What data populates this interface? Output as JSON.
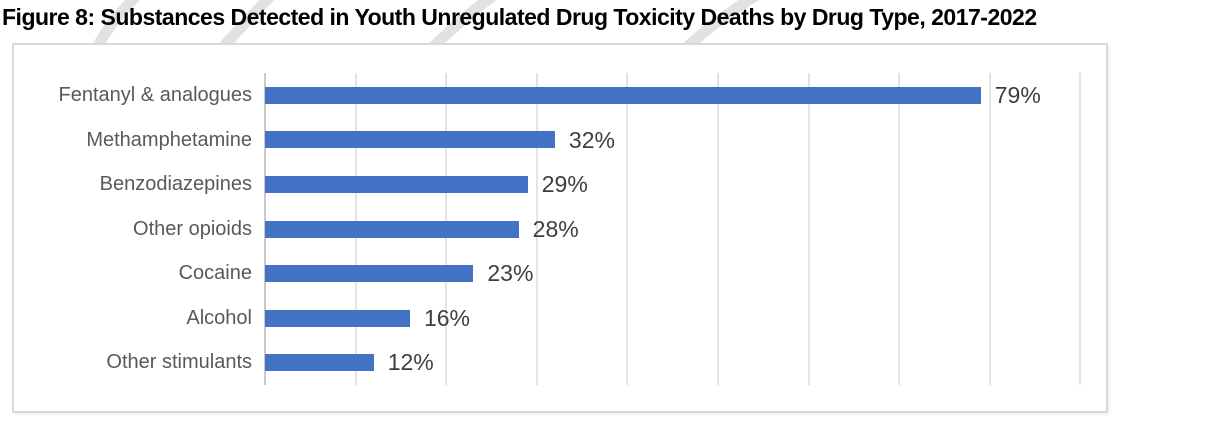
{
  "title": "Figure 8: Substances Detected in Youth Unregulated Drug Toxicity Deaths by Drug Type, 2017-2022",
  "colors": {
    "bar": "#4472C4",
    "category_label": "#595959",
    "value_label": "#3e3e3e",
    "gridline": "#e4e4e4",
    "axis_line": "#c9c9c9",
    "chart_border": "#d9d9d9",
    "title_text": "#000000",
    "watermark": "#d8d8d8"
  },
  "chart_data": {
    "type": "bar",
    "orientation": "horizontal",
    "title": "",
    "xlabel": "",
    "ylabel": "",
    "categories": [
      "Fentanyl & analogues",
      "Methamphetamine",
      "Benzodiazepines",
      "Other opioids",
      "Cocaine",
      "Alcohol",
      "Other stimulants"
    ],
    "values": [
      79,
      32,
      29,
      28,
      23,
      16,
      12
    ],
    "value_labels": [
      "79%",
      "32%",
      "29%",
      "28%",
      "23%",
      "16%",
      "12%"
    ],
    "xlim": [
      0,
      90
    ],
    "gridline_interval": 10,
    "grid": true,
    "legend": "none",
    "data_labels": "outside-end",
    "axis_tick_labels": "none"
  }
}
